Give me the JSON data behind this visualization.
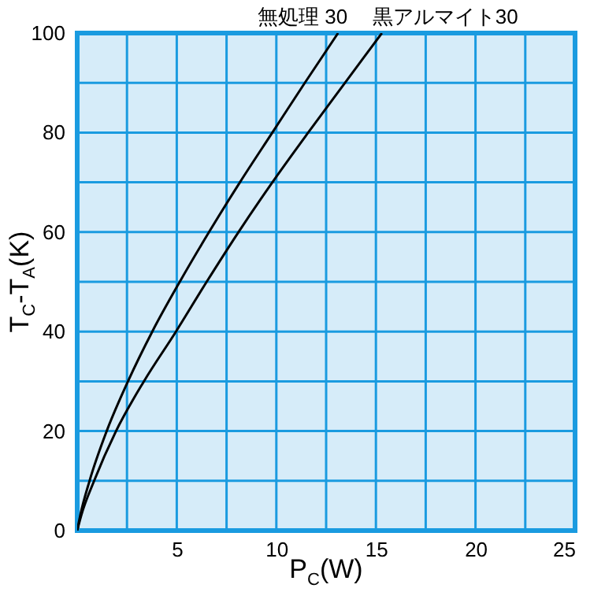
{
  "chart_data": {
    "type": "line",
    "xlabel": "P$_{C}$(W)",
    "ylabel": "T$_{C}$-T$_{A}$(K)",
    "xlim": [
      0,
      25
    ],
    "ylim": [
      0,
      100
    ],
    "xticks": [
      {
        "value": 0,
        "label": null
      },
      {
        "value": 2.5,
        "label": null
      },
      5,
      {
        "value": 7.5,
        "label": null
      },
      10,
      {
        "value": 12.5,
        "label": null
      },
      15,
      {
        "value": 17.5,
        "label": null
      },
      20,
      {
        "value": 22.5,
        "label": null
      },
      25
    ],
    "yticks": [
      0,
      {
        "value": 10,
        "label": null
      },
      20,
      {
        "value": 30,
        "label": null
      },
      40,
      {
        "value": 50,
        "label": null
      },
      60,
      {
        "value": 70,
        "label": null
      },
      80,
      {
        "value": 90,
        "label": null
      },
      100
    ],
    "grid": true,
    "line_style": "solid",
    "series": [
      {
        "name": "無処理 30",
        "color": "#000000",
        "x": [
          0,
          0.15,
          0.62,
          1.48,
          2.55,
          3.77,
          5.15,
          6.62,
          8.17,
          9.8,
          11.43,
          13.1
        ],
        "values": [
          0,
          3,
          10,
          20,
          30,
          40,
          50,
          60,
          70,
          80,
          90,
          100
        ]
      },
      {
        "name": "黒アルマイト30",
        "color": "#000000",
        "x": [
          0,
          0.2,
          0.85,
          1.95,
          3.35,
          4.96,
          6.5,
          8.1,
          9.8,
          11.6,
          13.45,
          15.3
        ],
        "values": [
          0,
          3,
          10,
          20,
          30,
          40,
          50,
          60,
          70,
          80,
          90,
          100
        ]
      }
    ]
  }
}
